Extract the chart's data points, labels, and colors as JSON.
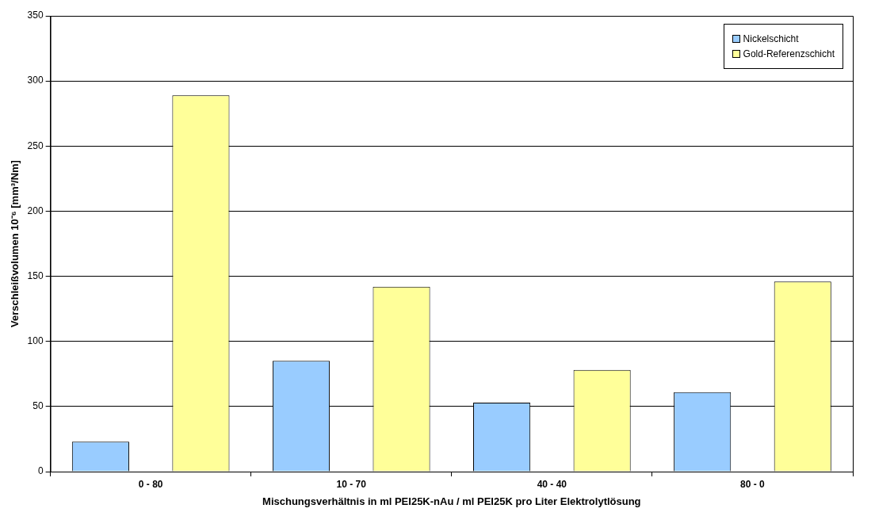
{
  "chart_data": {
    "type": "bar",
    "xlabel": "Mischungsverhältnis in ml PEI25K-nAu / ml PEI25K pro Liter Elektrolytlösung",
    "ylabel": "Verschleißvolumen 10⁻⁶ [mm³/Nm]",
    "categories": [
      "0 - 80",
      "10 - 70",
      "40 - 40",
      "80 - 0"
    ],
    "series": [
      {
        "name": "Nickelschicht",
        "color": "#99ccff",
        "values": [
          23,
          85,
          53,
          61
        ]
      },
      {
        "name": "Gold-Referenzschicht",
        "color": "#ffff99",
        "values": [
          289,
          142,
          78,
          146
        ]
      }
    ],
    "ylim": [
      0,
      350
    ],
    "yticks": [
      0,
      50,
      100,
      150,
      200,
      250,
      300,
      350
    ],
    "grid": "y",
    "legend": "top right"
  }
}
